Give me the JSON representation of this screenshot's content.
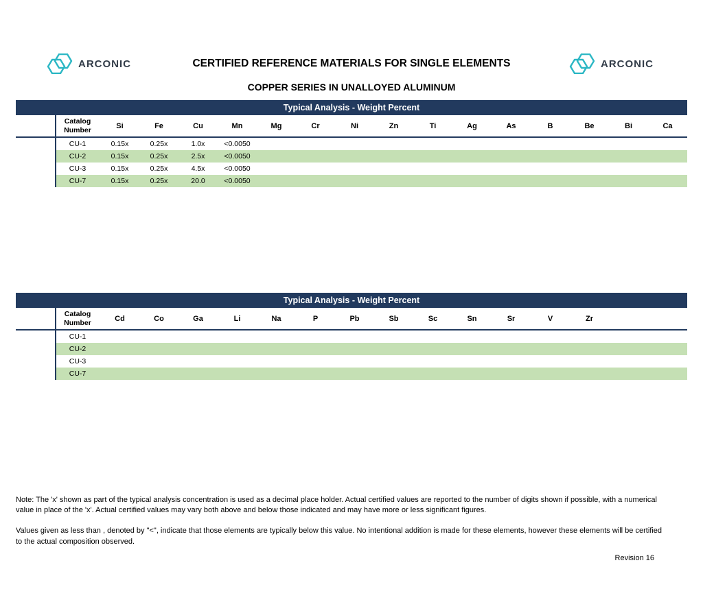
{
  "header": {
    "logo_label": "ARCONIC",
    "title": "CERTIFIED REFERENCE MATERIALS FOR SINGLE ELEMENTS",
    "subtitle": "COPPER SERIES IN UNALLOYED ALUMINUM"
  },
  "colors": {
    "header_navy": "#223A5E",
    "row_green": "#C5E0B4",
    "logo_teal": "#2BB7C4"
  },
  "tables": [
    {
      "banner": "Typical Analysis - Weight Percent",
      "catalog_line1": "Catalog",
      "catalog_line2": "Number",
      "columns": [
        "Si",
        "Fe",
        "Cu",
        "Mn",
        "Mg",
        "Cr",
        "Ni",
        "Zn",
        "Ti",
        "Ag",
        "As",
        "B",
        "Be",
        "Bi",
        "Ca"
      ],
      "rows": [
        {
          "catalog": "CU-1",
          "values": [
            "0.15x",
            "0.25x",
            "1.0x",
            "<0.0050"
          ]
        },
        {
          "catalog": "CU-2",
          "values": [
            "0.15x",
            "0.25x",
            "2.5x",
            "<0.0050"
          ]
        },
        {
          "catalog": "CU-3",
          "values": [
            "0.15x",
            "0.25x",
            "4.5x",
            "<0.0050"
          ]
        },
        {
          "catalog": "CU-7",
          "values": [
            "0.15x",
            "0.25x",
            "20.0",
            "<0.0050"
          ]
        }
      ]
    },
    {
      "banner": "Typical Analysis - Weight Percent",
      "catalog_line1": "Catalog",
      "catalog_line2": "Number",
      "columns": [
        "Cd",
        "Co",
        "Ga",
        "Li",
        "Na",
        "P",
        "Pb",
        "Sb",
        "Sc",
        "Sn",
        "Sr",
        "V",
        "Zr"
      ],
      "rows": [
        {
          "catalog": "CU-1",
          "values": []
        },
        {
          "catalog": "CU-2",
          "values": []
        },
        {
          "catalog": "CU-3",
          "values": []
        },
        {
          "catalog": "CU-7",
          "values": []
        }
      ]
    }
  ],
  "notes": {
    "paragraph1": "Note:  The 'x' shown as part of the typical analysis concentration is used as a decimal place holder.  Actual certified values are reported to the number of digits shown if possible, with a numerical value in place of the 'x'.  Actual certified values may vary both above and below those indicated and may have more or less significant figures.",
    "paragraph2": "Values given as less than , denoted by \"<\", indicate that those elements are typically below this value.  No intentional addition is made for these elements, however  these elements will be certified to the actual composition observed.",
    "revision": "Revision 16"
  }
}
